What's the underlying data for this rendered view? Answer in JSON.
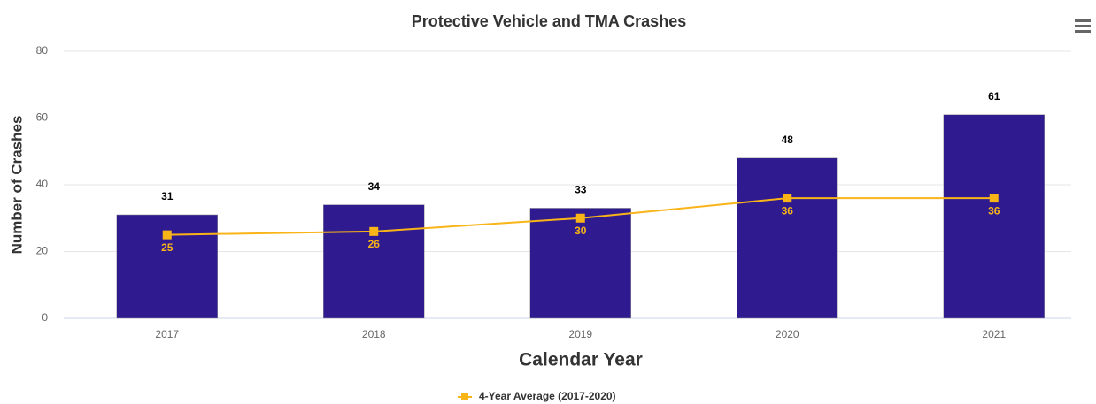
{
  "chart_data": {
    "type": "bar",
    "title": "Protective Vehicle and TMA Crashes",
    "x_label": "Calendar Year",
    "y_label": "Number of Crashes",
    "categories": [
      "2017",
      "2018",
      "2019",
      "2020",
      "2021"
    ],
    "series": [
      {
        "type": "bar",
        "color": "#2f1b8f",
        "values": [
          31,
          34,
          33,
          48,
          61
        ]
      },
      {
        "type": "line",
        "name": "4-Year Average (2017-2020)",
        "color": "#f9b418",
        "values": [
          25,
          26,
          30,
          36,
          36
        ]
      }
    ],
    "ylim": [
      0,
      80
    ],
    "yticks": [
      0,
      20,
      40,
      60,
      80
    ],
    "grid": true,
    "legend": "bottom"
  }
}
